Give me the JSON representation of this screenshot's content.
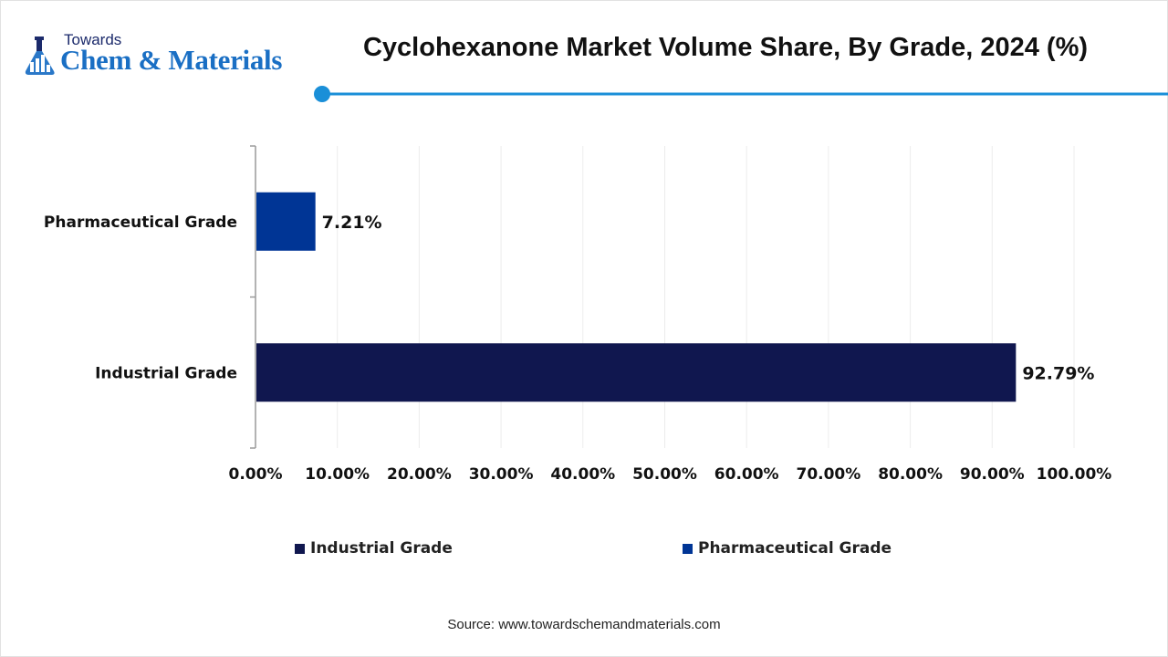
{
  "brand": {
    "small_text": "Towards",
    "main_text": "Chem & Materials",
    "icon": "flask-chart-icon"
  },
  "chart_data": {
    "type": "bar",
    "orientation": "horizontal",
    "title": "Cyclohexanone Market Volume Share, By Grade, 2024 (%)",
    "categories": [
      "Pharmaceutical Grade",
      "Industrial Grade"
    ],
    "values": [
      7.21,
      92.79
    ],
    "value_labels": [
      "7.21%",
      "92.79%"
    ],
    "bar_colors": [
      "#003595",
      "#10174f"
    ],
    "xlim": [
      0,
      100
    ],
    "x_ticks": [
      0,
      10,
      20,
      30,
      40,
      50,
      60,
      70,
      80,
      90,
      100
    ],
    "x_tick_labels": [
      "0.00%",
      "10.00%",
      "20.00%",
      "30.00%",
      "40.00%",
      "50.00%",
      "60.00%",
      "70.00%",
      "80.00%",
      "90.00%",
      "100.00%"
    ],
    "grid": "vertical",
    "legend": {
      "placement": "bottom",
      "entries": [
        {
          "label": "Industrial Grade",
          "color": "#10174f"
        },
        {
          "label": "Pharmaceutical Grade",
          "color": "#003595"
        }
      ]
    }
  },
  "source": "Source: www.towardschemandmaterials.com",
  "colors": {
    "accent": "#1a8fd8",
    "brand_blue": "#1a6fc4"
  }
}
